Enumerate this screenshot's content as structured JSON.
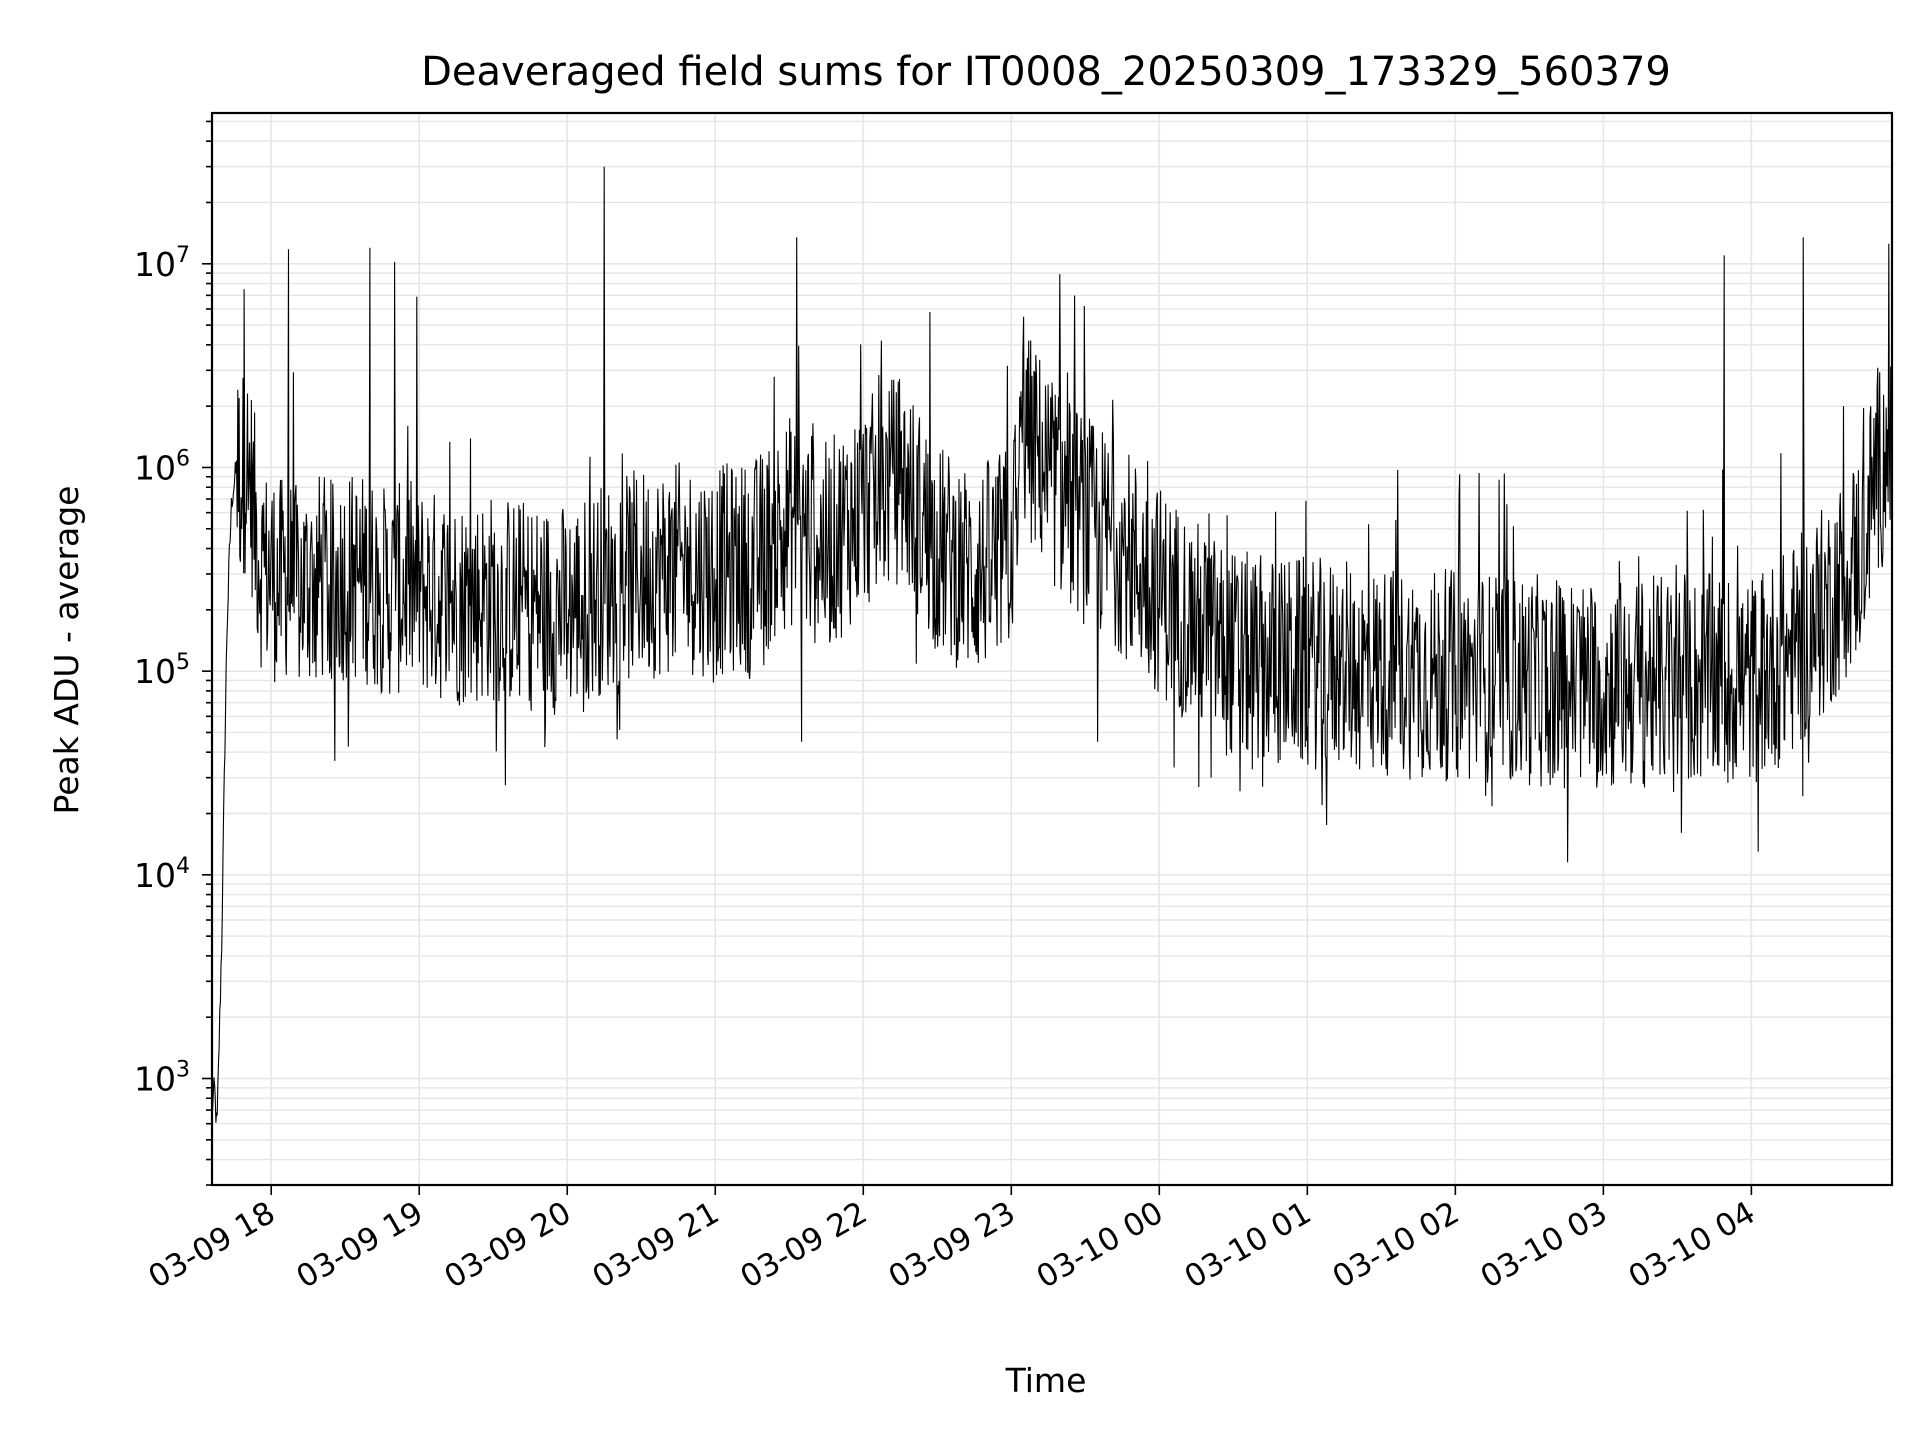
{
  "chart_data": {
    "type": "line",
    "title": "Deaveraged field sums for IT0008_20250309_173329_560379",
    "xlabel": "Time",
    "ylabel": "Peak ADU - average",
    "x_scale": "time",
    "y_scale": "log",
    "xlim": [
      "2025-03-09 17:36",
      "2025-03-10 04:57"
    ],
    "ylim": [
      300,
      55000000
    ],
    "x_tick_labels": [
      "03-09 18",
      "03-09 19",
      "03-09 20",
      "03-09 21",
      "03-09 22",
      "03-09 23",
      "03-10 00",
      "03-10 01",
      "03-10 02",
      "03-10 03",
      "03-10 04"
    ],
    "y_tick_labels": [
      {
        "base": "10",
        "exp": "3",
        "value": 1000
      },
      {
        "base": "10",
        "exp": "4",
        "value": 10000
      },
      {
        "base": "10",
        "exp": "5",
        "value": 100000
      },
      {
        "base": "10",
        "exp": "6",
        "value": 1000000
      },
      {
        "base": "10",
        "exp": "7",
        "value": 10000000
      }
    ],
    "grid": true,
    "line_color": "#000000",
    "grid_color": "#e6e6e6",
    "series": [
      {
        "x": [
          "2025-03-09 17:36",
          "2025-03-09 17:37",
          "2025-03-09 17:38",
          "2025-03-09 17:39",
          "2025-03-09 17:40",
          "2025-03-09 17:41",
          "2025-03-09 17:42",
          "2025-03-09 17:43",
          "2025-03-09 17:44",
          "2025-03-09 17:46",
          "2025-03-09 17:48",
          "2025-03-09 17:50",
          "2025-03-09 17:52",
          "2025-03-09 17:53",
          "2025-03-09 17:55",
          "2025-03-09 17:57",
          "2025-03-09 18:00",
          "2025-03-09 18:03",
          "2025-03-09 18:06",
          "2025-03-09 18:10",
          "2025-03-09 18:15",
          "2025-03-09 18:20",
          "2025-03-09 18:25",
          "2025-03-09 18:30",
          "2025-03-09 18:40",
          "2025-03-09 18:45",
          "2025-03-09 18:50",
          "2025-03-09 18:55",
          "2025-03-09 19:00",
          "2025-03-09 19:15",
          "2025-03-09 19:30",
          "2025-03-09 19:45",
          "2025-03-09 20:00",
          "2025-03-09 20:15",
          "2025-03-09 20:30",
          "2025-03-09 20:45",
          "2025-03-09 21:00",
          "2025-03-09 21:15",
          "2025-03-09 21:30",
          "2025-03-09 21:45",
          "2025-03-09 22:00",
          "2025-03-09 22:15",
          "2025-03-09 22:30",
          "2025-03-09 22:45",
          "2025-03-09 23:00",
          "2025-03-09 23:05",
          "2025-03-09 23:10",
          "2025-03-09 23:20",
          "2025-03-09 23:30",
          "2025-03-09 23:45",
          "2025-03-10 00:00",
          "2025-03-10 00:15",
          "2025-03-10 00:30",
          "2025-03-10 00:45",
          "2025-03-10 01:00",
          "2025-03-10 01:30",
          "2025-03-10 02:00",
          "2025-03-10 02:30",
          "2025-03-10 03:00",
          "2025-03-10 03:30",
          "2025-03-10 04:00",
          "2025-03-10 04:15",
          "2025-03-10 04:30",
          "2025-03-10 04:45",
          "2025-03-10 04:50",
          "2025-03-10 04:55",
          "2025-03-10 04:57"
        ],
        "y": [
          700,
          900,
          550,
          1700,
          5000,
          30000,
          150000,
          350000,
          700000,
          1000000,
          900000,
          1050000,
          800000,
          600000,
          380000,
          300000,
          320000,
          260000,
          300000,
          250000,
          270000,
          290000,
          260000,
          300000,
          280000,
          250000,
          240000,
          270000,
          250000,
          220000,
          230000,
          210000,
          200000,
          260000,
          300000,
          320000,
          310000,
          330000,
          550000,
          400000,
          650000,
          900000,
          400000,
          300000,
          400000,
          1500000,
          1200000,
          750000,
          550000,
          400000,
          250000,
          170000,
          120000,
          110000,
          110000,
          100000,
          95000,
          90000,
          85000,
          90000,
          90000,
          120000,
          200000,
          400000,
          900000,
          1200000,
          900000
        ]
      }
    ],
    "spikes": [
      {
        "x": "2025-03-09 17:49",
        "y": 7500000
      },
      {
        "x": "2025-03-09 18:07",
        "y": 11800000
      },
      {
        "x": "2025-03-09 18:40",
        "y": 12000000
      },
      {
        "x": "2025-03-09 18:50",
        "y": 10200000
      },
      {
        "x": "2025-03-09 18:59",
        "y": 6900000
      },
      {
        "x": "2025-03-09 20:15",
        "y": 30000000
      },
      {
        "x": "2025-03-09 21:33",
        "y": 13500000
      },
      {
        "x": "2025-03-09 22:27",
        "y": 5800000
      },
      {
        "x": "2025-03-09 23:05",
        "y": 5500000
      },
      {
        "x": "2025-03-10 03:49",
        "y": 11000000
      },
      {
        "x": "2025-03-10 04:21",
        "y": 13500000
      }
    ],
    "dips": [
      {
        "x": "2025-03-09 21:35",
        "y": 45000
      },
      {
        "x": "2025-03-09 23:35",
        "y": 45000
      },
      {
        "x": "2025-03-10 00:16",
        "y": 27000
      },
      {
        "x": "2025-03-10 00:21",
        "y": 30000
      },
      {
        "x": "2025-03-10 00:58",
        "y": 37000
      }
    ]
  }
}
